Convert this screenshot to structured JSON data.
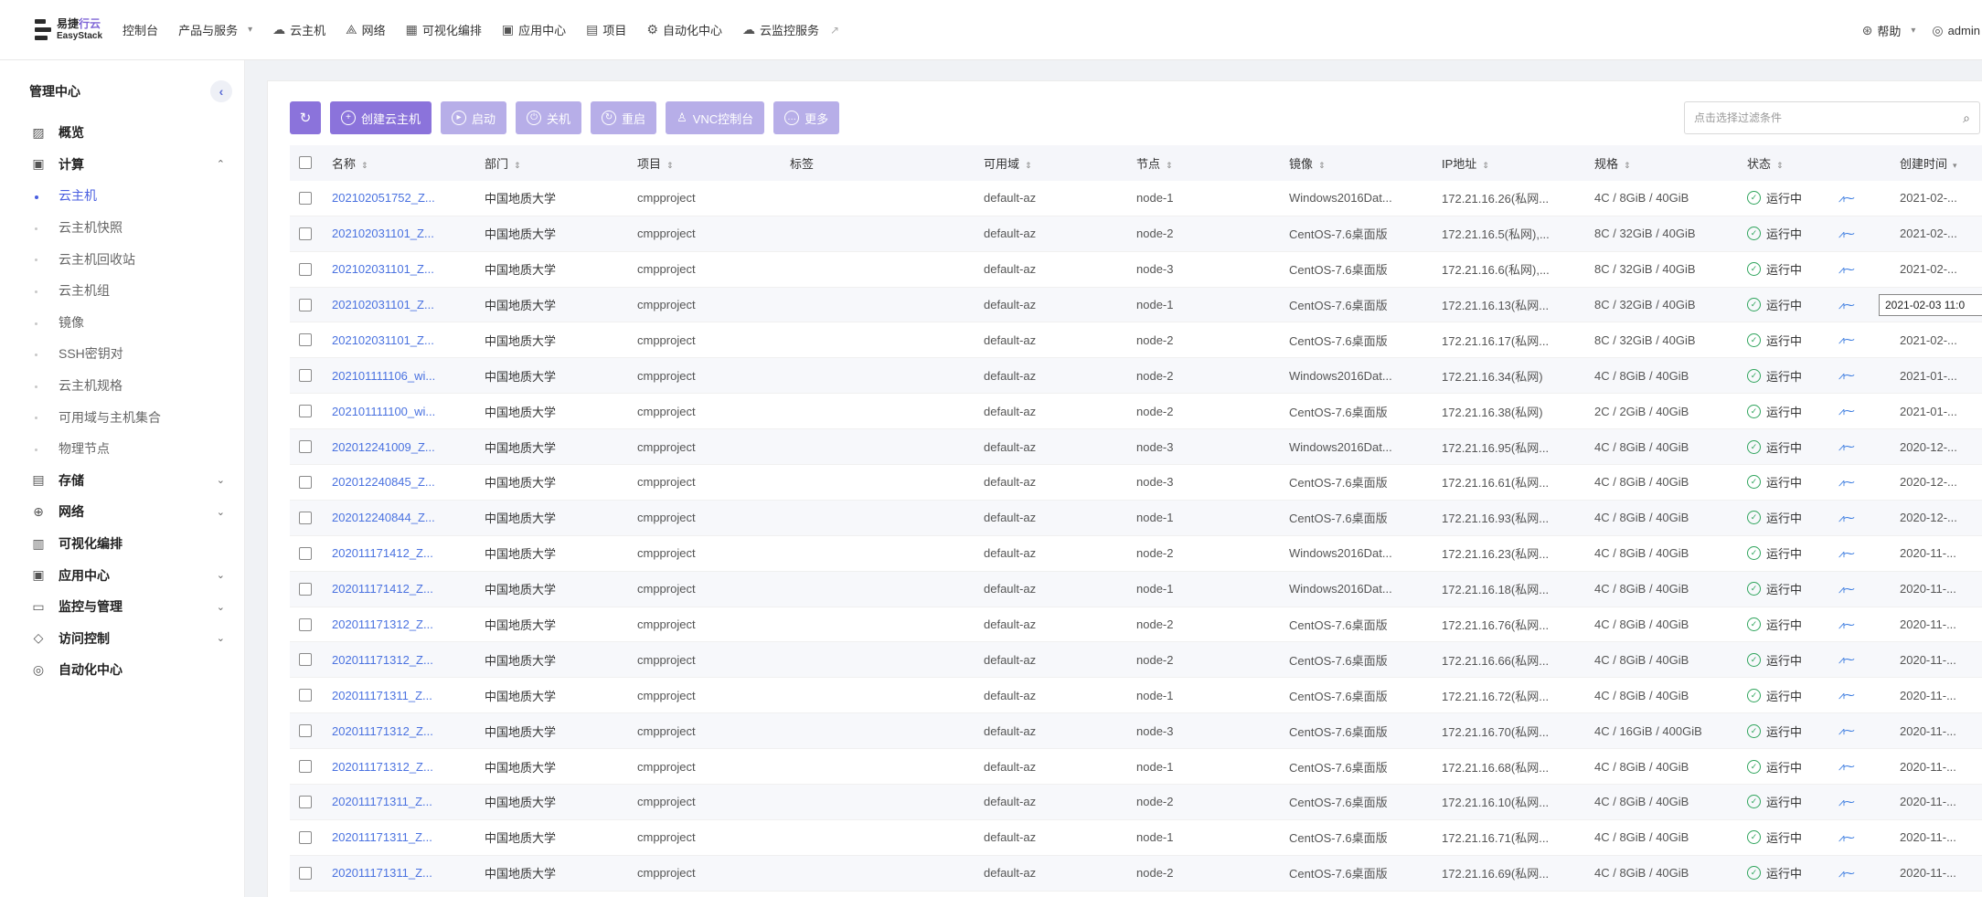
{
  "topbar": {
    "logo_cn_a": "易捷",
    "logo_cn_b": "行云",
    "logo_en": "EasyStack",
    "console": "控制台",
    "products": "产品与服务",
    "nav": [
      {
        "icon": "cloud-icon",
        "glyph": "☁",
        "label": "云主机"
      },
      {
        "icon": "network-icon",
        "glyph": "⟁",
        "label": "网络"
      },
      {
        "icon": "layout-icon",
        "glyph": "▦",
        "label": "可视化编排"
      },
      {
        "icon": "app-icon",
        "glyph": "▣",
        "label": "应用中心"
      },
      {
        "icon": "project-icon",
        "glyph": "▤",
        "label": "项目"
      },
      {
        "icon": "automation-icon",
        "glyph": "⚙",
        "label": "自动化中心"
      },
      {
        "icon": "monitor-cloud-icon",
        "glyph": "☁",
        "label": "云监控服务"
      }
    ],
    "help": "帮助",
    "user": "admin"
  },
  "sidebar": {
    "title": "管理中心",
    "items": [
      {
        "type": "menu",
        "icon": "overview-icon",
        "glyph": "▨",
        "label": "概览",
        "caret": ""
      },
      {
        "type": "menu",
        "icon": "compute-icon",
        "glyph": "▣",
        "label": "计算",
        "caret": "⌃"
      },
      {
        "type": "sub",
        "label": "云主机",
        "active": true
      },
      {
        "type": "sub",
        "label": "云主机快照"
      },
      {
        "type": "sub",
        "label": "云主机回收站"
      },
      {
        "type": "sub",
        "label": "云主机组"
      },
      {
        "type": "sub",
        "label": "镜像"
      },
      {
        "type": "sub",
        "label": "SSH密钥对"
      },
      {
        "type": "sub",
        "label": "云主机规格"
      },
      {
        "type": "sub",
        "label": "可用域与主机集合"
      },
      {
        "type": "sub",
        "label": "物理节点"
      },
      {
        "type": "menu",
        "icon": "storage-icon",
        "glyph": "▤",
        "label": "存储",
        "caret": "⌄"
      },
      {
        "type": "menu",
        "icon": "network-icon",
        "glyph": "⊕",
        "label": "网络",
        "caret": "⌄"
      },
      {
        "type": "menu",
        "icon": "orchestration-icon",
        "glyph": "▥",
        "label": "可视化编排",
        "caret": ""
      },
      {
        "type": "menu",
        "icon": "app-center-icon",
        "glyph": "▣",
        "label": "应用中心",
        "caret": "⌄"
      },
      {
        "type": "menu",
        "icon": "monitor-icon",
        "glyph": "▭",
        "label": "监控与管理",
        "caret": "⌄"
      },
      {
        "type": "menu",
        "icon": "shield-icon",
        "glyph": "◇",
        "label": "访问控制",
        "caret": "⌄"
      },
      {
        "type": "menu",
        "icon": "automation-icon",
        "glyph": "◎",
        "label": "自动化中心",
        "caret": ""
      }
    ]
  },
  "toolbar": {
    "refresh_glyph": "↻",
    "create": "创建云主机",
    "start": "启动",
    "shutdown": "关机",
    "restart": "重启",
    "vnc": "VNC控制台",
    "more": "更多"
  },
  "search": {
    "placeholder": "点击选择过滤条件"
  },
  "table": {
    "headers": {
      "name": "名称",
      "dept": "部门",
      "project": "项目",
      "tag": "标签",
      "az": "可用域",
      "node": "节点",
      "image": "镜像",
      "ip": "IP地址",
      "flavor": "规格",
      "status": "状态",
      "created": "创建时间"
    },
    "rows": [
      {
        "name": "202102051752_Z...",
        "dept": "中国地质大学",
        "project": "cmpproject",
        "tag": "",
        "az": "default-az",
        "node": "node-1",
        "image": "Windows2016Dat...",
        "ip": "172.21.16.26(私网...",
        "flavor": "4C / 8GiB / 40GiB",
        "status": "运行中",
        "created": "2021-02-..."
      },
      {
        "name": "202102031101_Z...",
        "dept": "中国地质大学",
        "project": "cmpproject",
        "tag": "",
        "az": "default-az",
        "node": "node-2",
        "image": "CentOS-7.6桌面版",
        "ip": "172.21.16.5(私网),...",
        "flavor": "8C / 32GiB / 40GiB",
        "status": "运行中",
        "created": "2021-02-..."
      },
      {
        "name": "202102031101_Z...",
        "dept": "中国地质大学",
        "project": "cmpproject",
        "tag": "",
        "az": "default-az",
        "node": "node-3",
        "image": "CentOS-7.6桌面版",
        "ip": "172.21.16.6(私网),...",
        "flavor": "8C / 32GiB / 40GiB",
        "status": "运行中",
        "created": "2021-02-..."
      },
      {
        "name": "202102031101_Z...",
        "dept": "中国地质大学",
        "project": "cmpproject",
        "tag": "",
        "az": "default-az",
        "node": "node-1",
        "image": "CentOS-7.6桌面版",
        "ip": "172.21.16.13(私网...",
        "flavor": "8C / 32GiB / 40GiB",
        "status": "运行中",
        "created": ""
      },
      {
        "name": "202102031101_Z...",
        "dept": "中国地质大学",
        "project": "cmpproject",
        "tag": "",
        "az": "default-az",
        "node": "node-2",
        "image": "CentOS-7.6桌面版",
        "ip": "172.21.16.17(私网...",
        "flavor": "8C / 32GiB / 40GiB",
        "status": "运行中",
        "created": "2021-02-..."
      },
      {
        "name": "202101111106_wi...",
        "dept": "中国地质大学",
        "project": "cmpproject",
        "tag": "",
        "az": "default-az",
        "node": "node-2",
        "image": "Windows2016Dat...",
        "ip": "172.21.16.34(私网)",
        "flavor": "4C / 8GiB / 40GiB",
        "status": "运行中",
        "created": "2021-01-..."
      },
      {
        "name": "202101111100_wi...",
        "dept": "中国地质大学",
        "project": "cmpproject",
        "tag": "",
        "az": "default-az",
        "node": "node-2",
        "image": "CentOS-7.6桌面版",
        "ip": "172.21.16.38(私网)",
        "flavor": "2C / 2GiB / 40GiB",
        "status": "运行中",
        "created": "2021-01-..."
      },
      {
        "name": "202012241009_Z...",
        "dept": "中国地质大学",
        "project": "cmpproject",
        "tag": "",
        "az": "default-az",
        "node": "node-3",
        "image": "Windows2016Dat...",
        "ip": "172.21.16.95(私网...",
        "flavor": "4C / 8GiB / 40GiB",
        "status": "运行中",
        "created": "2020-12-..."
      },
      {
        "name": "202012240845_Z...",
        "dept": "中国地质大学",
        "project": "cmpproject",
        "tag": "",
        "az": "default-az",
        "node": "node-3",
        "image": "CentOS-7.6桌面版",
        "ip": "172.21.16.61(私网...",
        "flavor": "4C / 8GiB / 40GiB",
        "status": "运行中",
        "created": "2020-12-..."
      },
      {
        "name": "202012240844_Z...",
        "dept": "中国地质大学",
        "project": "cmpproject",
        "tag": "",
        "az": "default-az",
        "node": "node-1",
        "image": "CentOS-7.6桌面版",
        "ip": "172.21.16.93(私网...",
        "flavor": "4C / 8GiB / 40GiB",
        "status": "运行中",
        "created": "2020-12-..."
      },
      {
        "name": "202011171412_Z...",
        "dept": "中国地质大学",
        "project": "cmpproject",
        "tag": "",
        "az": "default-az",
        "node": "node-2",
        "image": "Windows2016Dat...",
        "ip": "172.21.16.23(私网...",
        "flavor": "4C / 8GiB / 40GiB",
        "status": "运行中",
        "created": "2020-11-..."
      },
      {
        "name": "202011171412_Z...",
        "dept": "中国地质大学",
        "project": "cmpproject",
        "tag": "",
        "az": "default-az",
        "node": "node-1",
        "image": "Windows2016Dat...",
        "ip": "172.21.16.18(私网...",
        "flavor": "4C / 8GiB / 40GiB",
        "status": "运行中",
        "created": "2020-11-..."
      },
      {
        "name": "202011171312_Z...",
        "dept": "中国地质大学",
        "project": "cmpproject",
        "tag": "",
        "az": "default-az",
        "node": "node-2",
        "image": "CentOS-7.6桌面版",
        "ip": "172.21.16.76(私网...",
        "flavor": "4C / 8GiB / 40GiB",
        "status": "运行中",
        "created": "2020-11-..."
      },
      {
        "name": "202011171312_Z...",
        "dept": "中国地质大学",
        "project": "cmpproject",
        "tag": "",
        "az": "default-az",
        "node": "node-2",
        "image": "CentOS-7.6桌面版",
        "ip": "172.21.16.66(私网...",
        "flavor": "4C / 8GiB / 40GiB",
        "status": "运行中",
        "created": "2020-11-..."
      },
      {
        "name": "202011171311_Z...",
        "dept": "中国地质大学",
        "project": "cmpproject",
        "tag": "",
        "az": "default-az",
        "node": "node-1",
        "image": "CentOS-7.6桌面版",
        "ip": "172.21.16.72(私网...",
        "flavor": "4C / 8GiB / 40GiB",
        "status": "运行中",
        "created": "2020-11-..."
      },
      {
        "name": "202011171312_Z...",
        "dept": "中国地质大学",
        "project": "cmpproject",
        "tag": "",
        "az": "default-az",
        "node": "node-3",
        "image": "CentOS-7.6桌面版",
        "ip": "172.21.16.70(私网...",
        "flavor": "4C / 16GiB / 400GiB",
        "status": "运行中",
        "created": "2020-11-..."
      },
      {
        "name": "202011171312_Z...",
        "dept": "中国地质大学",
        "project": "cmpproject",
        "tag": "",
        "az": "default-az",
        "node": "node-1",
        "image": "CentOS-7.6桌面版",
        "ip": "172.21.16.68(私网...",
        "flavor": "4C / 8GiB / 40GiB",
        "status": "运行中",
        "created": "2020-11-..."
      },
      {
        "name": "202011171311_Z...",
        "dept": "中国地质大学",
        "project": "cmpproject",
        "tag": "",
        "az": "default-az",
        "node": "node-2",
        "image": "CentOS-7.6桌面版",
        "ip": "172.21.16.10(私网...",
        "flavor": "4C / 8GiB / 40GiB",
        "status": "运行中",
        "created": "2020-11-..."
      },
      {
        "name": "202011171311_Z...",
        "dept": "中国地质大学",
        "project": "cmpproject",
        "tag": "",
        "az": "default-az",
        "node": "node-1",
        "image": "CentOS-7.6桌面版",
        "ip": "172.21.16.71(私网...",
        "flavor": "4C / 8GiB / 40GiB",
        "status": "运行中",
        "created": "2020-11-..."
      },
      {
        "name": "202011171311_Z...",
        "dept": "中国地质大学",
        "project": "cmpproject",
        "tag": "",
        "az": "default-az",
        "node": "node-2",
        "image": "CentOS-7.6桌面版",
        "ip": "172.21.16.69(私网...",
        "flavor": "4C / 8GiB / 40GiB",
        "status": "运行中",
        "created": "2020-11-..."
      }
    ]
  },
  "tooltip": {
    "text": "2021-02-03 11:0"
  },
  "colors": {
    "accent": "#8b73db",
    "accent_disabled": "#b7aee8",
    "link": "#4a72e0",
    "success": "#2fa45c"
  }
}
